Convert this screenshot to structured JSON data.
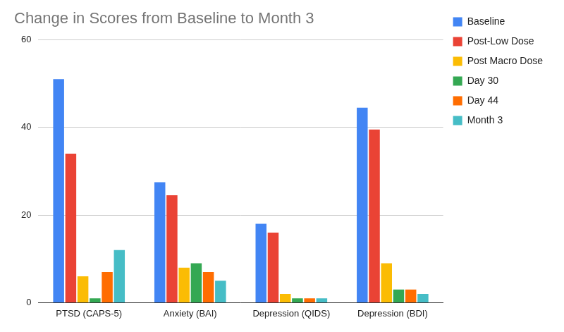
{
  "chart_data": {
    "type": "bar",
    "title": "Change in Scores from Baseline to Month 3",
    "categories": [
      "PTSD (CAPS-5)",
      "Anxiety (BAI)",
      "Depression (QIDS)",
      "Depression (BDI)"
    ],
    "series": [
      {
        "name": "Baseline",
        "color": "#4285f4",
        "values": [
          51,
          27.5,
          18,
          44.5
        ]
      },
      {
        "name": "Post-Low Dose",
        "color": "#ea4335",
        "values": [
          34,
          24.5,
          16,
          39.5
        ]
      },
      {
        "name": "Post Macro Dose",
        "color": "#fbbc04",
        "values": [
          6,
          8,
          2,
          9
        ]
      },
      {
        "name": "Day 30",
        "color": "#34a853",
        "values": [
          1,
          9,
          1,
          3
        ]
      },
      {
        "name": "Day 44",
        "color": "#ff6d01",
        "values": [
          7,
          7,
          1,
          3
        ]
      },
      {
        "name": "Month 3",
        "color": "#46bdc6",
        "values": [
          12,
          5,
          1,
          2
        ]
      }
    ],
    "ylim": [
      0,
      60
    ],
    "yticks": [
      0,
      20,
      40,
      60
    ],
    "grid": true,
    "legend": "right"
  }
}
